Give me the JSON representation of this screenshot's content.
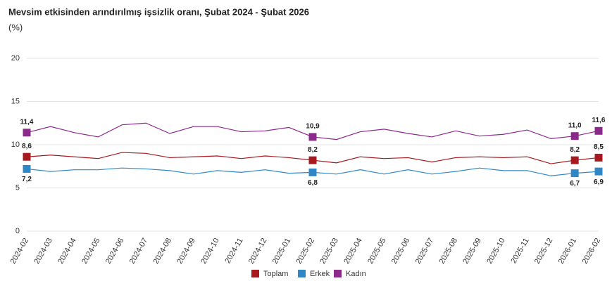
{
  "chart_data": {
    "type": "line",
    "title": "Mevsim etkisinden arındırılmış işsizlik oranı, Şubat 2024 - Şubat 2026",
    "subtitle": "(%)",
    "categories": [
      "2024-02",
      "2024-03",
      "2024-04",
      "2024-05",
      "2024-06",
      "2024-07",
      "2024-08",
      "2024-09",
      "2024-10",
      "2024-11",
      "2024-12",
      "2025-01",
      "2025-02",
      "2025-03",
      "2025-04",
      "2025-05",
      "2025-06",
      "2025-07",
      "2025-08",
      "2025-09",
      "2025-10",
      "2025-11",
      "2025-12",
      "2026-01",
      "2026-02"
    ],
    "series": [
      {
        "name": "Toplam",
        "color": "#a8191f",
        "values": [
          8.6,
          8.8,
          8.6,
          8.4,
          9.1,
          9.0,
          8.5,
          8.6,
          8.7,
          8.4,
          8.7,
          8.5,
          8.2,
          7.9,
          8.6,
          8.4,
          8.5,
          8.0,
          8.5,
          8.6,
          8.5,
          8.6,
          7.8,
          8.2,
          8.5
        ],
        "value_labels": [
          "8,6",
          null,
          null,
          null,
          null,
          null,
          null,
          null,
          null,
          null,
          null,
          null,
          "8,2",
          null,
          null,
          null,
          null,
          null,
          null,
          null,
          null,
          null,
          null,
          "8,2",
          "8,5"
        ]
      },
      {
        "name": "Erkek",
        "color": "#2f88c5",
        "values": [
          7.2,
          6.9,
          7.1,
          7.1,
          7.3,
          7.2,
          7.0,
          6.6,
          7.0,
          6.8,
          7.1,
          6.7,
          6.8,
          6.6,
          7.1,
          6.6,
          7.1,
          6.6,
          6.9,
          7.3,
          7.0,
          7.0,
          6.4,
          6.7,
          6.9
        ],
        "value_labels": [
          "7,2",
          null,
          null,
          null,
          null,
          null,
          null,
          null,
          null,
          null,
          null,
          null,
          "6,8",
          null,
          null,
          null,
          null,
          null,
          null,
          null,
          null,
          null,
          null,
          "6,7",
          "6,9"
        ]
      },
      {
        "name": "Kadın",
        "color": "#8c2a8c",
        "values": [
          11.4,
          12.1,
          11.4,
          10.9,
          12.3,
          12.5,
          11.3,
          12.1,
          12.1,
          11.5,
          11.6,
          12.0,
          10.9,
          10.6,
          11.5,
          11.8,
          11.3,
          10.9,
          11.6,
          11.0,
          11.2,
          11.7,
          10.7,
          11.0,
          11.6
        ],
        "value_labels": [
          "11,4",
          null,
          null,
          null,
          null,
          null,
          null,
          null,
          null,
          null,
          null,
          null,
          "10,9",
          null,
          null,
          null,
          null,
          null,
          null,
          null,
          null,
          null,
          null,
          "11,0",
          "11,6"
        ]
      }
    ],
    "ylim": [
      0,
      20
    ],
    "yticks": [
      0,
      5,
      10,
      15,
      20
    ],
    "grid": true,
    "legend": "bottom"
  }
}
